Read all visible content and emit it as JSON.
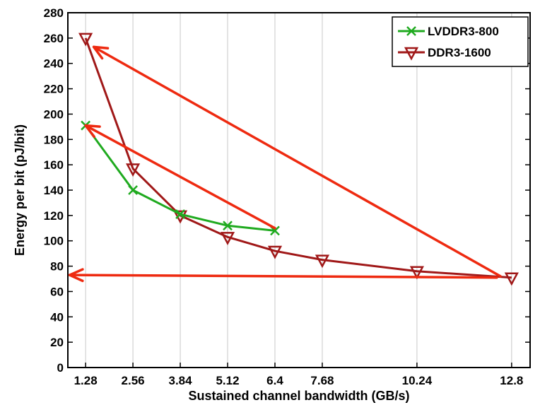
{
  "chart_data": {
    "type": "line",
    "title": "",
    "xlabel": "Sustained channel bandwidth (GB/s)",
    "ylabel": "Energy per bit (pJ/bit)",
    "xlim": [
      0.8,
      13.3
    ],
    "ylim": [
      0,
      280
    ],
    "xticks": [
      1.28,
      2.56,
      3.84,
      5.12,
      6.4,
      7.68,
      10.24,
      12.8
    ],
    "xtick_labels": [
      "1.28",
      "2.56",
      "3.84",
      "5.12",
      "6.4",
      "7.68",
      "10.24",
      "12.8"
    ],
    "yticks": [
      0,
      20,
      40,
      60,
      80,
      100,
      120,
      140,
      160,
      180,
      200,
      220,
      240,
      260,
      280
    ],
    "grid": "vertical",
    "legend_position": "top-right",
    "series": [
      {
        "name": "LVDDR3-800",
        "color": "#1faa1f",
        "marker": "x",
        "x": [
          1.28,
          2.56,
          3.84,
          5.12,
          6.4
        ],
        "y": [
          191,
          140,
          121,
          112,
          108
        ]
      },
      {
        "name": "DDR3-1600",
        "color": "#a01818",
        "marker": "triangle-down",
        "x": [
          1.28,
          2.56,
          3.84,
          5.12,
          6.4,
          7.68,
          10.24,
          12.8
        ],
        "y": [
          260,
          157,
          120,
          103,
          92,
          85,
          76,
          71
        ]
      }
    ],
    "annotations": [
      {
        "type": "arrow",
        "color": "#ee2a10",
        "from": [
          6.4,
          110
        ],
        "to": [
          1.28,
          191
        ]
      },
      {
        "type": "arrow",
        "color": "#ee2a10",
        "from": [
          12.5,
          72
        ],
        "to": [
          1.5,
          253
        ]
      },
      {
        "type": "arrow",
        "color": "#ee2a10",
        "from": [
          12.4,
          71
        ],
        "to": [
          0.85,
          73
        ]
      }
    ]
  }
}
